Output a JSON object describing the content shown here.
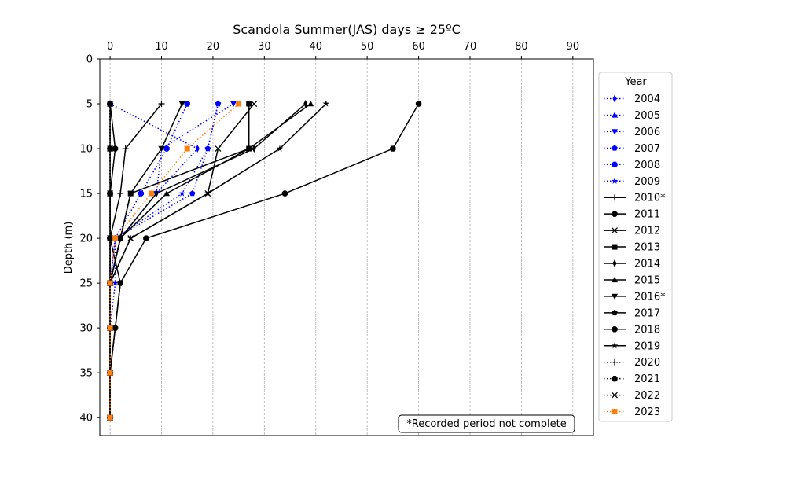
{
  "chart_data": {
    "type": "line",
    "title": "Scandola Summer(JAS) days ≥ 25ºC",
    "xlabel": "",
    "ylabel": "Depth (m)",
    "x_axis_position": "top",
    "y_inverted": true,
    "xlim": [
      -2,
      94
    ],
    "ylim": [
      42,
      0
    ],
    "xticks": [
      0,
      10,
      20,
      30,
      40,
      50,
      60,
      70,
      80,
      90
    ],
    "yticks": [
      0,
      5,
      10,
      15,
      20,
      25,
      30,
      35,
      40
    ],
    "x_grid": true,
    "legend_title": "Year",
    "legend_position": "outside-right",
    "note": "*Recorded period not complete",
    "series": [
      {
        "name": "2004",
        "color": "#0000ff",
        "linestyle": "dotted",
        "marker": "thin_diamond",
        "points": [
          [
            0,
            5
          ],
          [
            17,
            10
          ],
          [
            9,
            15
          ],
          [
            2,
            20
          ],
          [
            0,
            25
          ],
          [
            0,
            30
          ],
          [
            0,
            35
          ],
          [
            0,
            40
          ]
        ]
      },
      {
        "name": "2005",
        "color": "#0000ff",
        "linestyle": "dotted",
        "marker": "triangle_up",
        "points": [
          [
            0,
            5
          ],
          [
            0,
            10
          ],
          [
            0,
            15
          ],
          [
            0,
            20
          ],
          [
            0,
            25
          ],
          [
            0,
            30
          ],
          [
            0,
            35
          ],
          [
            0,
            40
          ]
        ]
      },
      {
        "name": "2006",
        "color": "#0000ff",
        "linestyle": "dotted",
        "marker": "triangle_down",
        "points": [
          [
            24,
            5
          ],
          [
            10,
            10
          ],
          [
            9,
            15
          ],
          [
            2,
            20
          ],
          [
            0,
            25
          ],
          [
            0,
            30
          ],
          [
            0,
            35
          ],
          [
            0,
            40
          ]
        ]
      },
      {
        "name": "2007",
        "color": "#0000ff",
        "linestyle": "dotted",
        "marker": "pentagon",
        "points": [
          [
            21,
            5
          ],
          [
            19,
            10
          ],
          [
            16,
            15
          ],
          [
            1,
            20
          ],
          [
            0,
            25
          ],
          [
            0,
            30
          ],
          [
            0,
            35
          ],
          [
            0,
            40
          ]
        ]
      },
      {
        "name": "2008",
        "color": "#0000ff",
        "linestyle": "dotted",
        "marker": "octagon",
        "points": [
          [
            15,
            5
          ],
          [
            11,
            10
          ],
          [
            6,
            15
          ],
          [
            1,
            20
          ],
          [
            0,
            25
          ],
          [
            0,
            30
          ],
          [
            0,
            35
          ],
          [
            0,
            40
          ]
        ]
      },
      {
        "name": "2009",
        "color": "#0000ff",
        "linestyle": "dotted",
        "marker": "star",
        "points": [
          [
            21,
            5
          ],
          [
            19,
            10
          ],
          [
            14,
            15
          ],
          [
            1,
            20
          ],
          [
            1,
            25
          ],
          [
            0,
            30
          ],
          [
            0,
            35
          ],
          [
            0,
            40
          ]
        ]
      },
      {
        "name": "2010*",
        "color": "#000000",
        "linestyle": "solid",
        "marker": "plus",
        "points": [
          [
            10,
            5
          ],
          [
            3,
            10
          ],
          [
            2,
            15
          ],
          [
            0,
            20
          ],
          [
            0,
            25
          ],
          [
            0,
            30
          ],
          [
            0,
            35
          ],
          [
            0,
            40
          ]
        ]
      },
      {
        "name": "2011",
        "color": "#000000",
        "linestyle": "solid",
        "marker": "octagon",
        "points": [
          [
            0,
            5
          ],
          [
            1,
            10
          ],
          [
            0,
            15
          ],
          [
            0,
            20
          ],
          [
            0,
            25
          ],
          [
            0,
            30
          ],
          [
            0,
            35
          ],
          [
            0,
            40
          ]
        ]
      },
      {
        "name": "2012",
        "color": "#000000",
        "linestyle": "solid",
        "marker": "x",
        "points": [
          [
            28,
            5
          ],
          [
            21,
            10
          ],
          [
            19,
            15
          ],
          [
            4,
            20
          ],
          [
            0,
            25
          ],
          [
            0,
            30
          ],
          [
            0,
            35
          ],
          [
            0,
            40
          ]
        ]
      },
      {
        "name": "2013",
        "color": "#000000",
        "linestyle": "solid",
        "marker": "square",
        "points": [
          [
            27,
            5
          ],
          [
            27,
            10
          ],
          [
            4,
            15
          ],
          [
            2,
            20
          ],
          [
            0,
            25
          ],
          [
            0,
            30
          ],
          [
            0,
            35
          ],
          [
            0,
            40
          ]
        ]
      },
      {
        "name": "2014",
        "color": "#000000",
        "linestyle": "solid",
        "marker": "thin_diamond",
        "points": [
          [
            38,
            5
          ],
          [
            28,
            10
          ],
          [
            9,
            15
          ],
          [
            2,
            20
          ],
          [
            0,
            25
          ],
          [
            0,
            30
          ],
          [
            0,
            35
          ],
          [
            0,
            40
          ]
        ]
      },
      {
        "name": "2015",
        "color": "#000000",
        "linestyle": "solid",
        "marker": "triangle_up",
        "points": [
          [
            39,
            5
          ],
          [
            27,
            10
          ],
          [
            11,
            15
          ],
          [
            2,
            20
          ],
          [
            0,
            25
          ],
          [
            0,
            30
          ],
          [
            0,
            35
          ],
          [
            0,
            40
          ]
        ]
      },
      {
        "name": "2016*",
        "color": "#000000",
        "linestyle": "solid",
        "marker": "triangle_down",
        "points": [
          [
            14,
            5
          ],
          [
            10,
            10
          ],
          [
            4,
            15
          ],
          [
            2,
            20
          ],
          [
            0,
            25
          ],
          [
            0,
            30
          ],
          [
            0,
            35
          ],
          [
            0,
            40
          ]
        ]
      },
      {
        "name": "2017",
        "color": "#000000",
        "linestyle": "solid",
        "marker": "pentagon",
        "points": [
          [
            0,
            5
          ],
          [
            0,
            10
          ],
          [
            0,
            15
          ],
          [
            0,
            20
          ],
          [
            2,
            25
          ],
          [
            1,
            30
          ],
          [
            0,
            35
          ],
          [
            0,
            40
          ]
        ]
      },
      {
        "name": "2018",
        "color": "#000000",
        "linestyle": "solid",
        "marker": "octagon",
        "points": [
          [
            60,
            5
          ],
          [
            55,
            10
          ],
          [
            34,
            15
          ],
          [
            7,
            20
          ],
          [
            2,
            25
          ],
          [
            1,
            30
          ],
          [
            0,
            35
          ],
          [
            0,
            40
          ]
        ]
      },
      {
        "name": "2019",
        "color": "#000000",
        "linestyle": "solid",
        "marker": "star",
        "points": [
          [
            42,
            5
          ],
          [
            33,
            10
          ],
          [
            19,
            15
          ],
          [
            4,
            20
          ],
          [
            0,
            25
          ],
          [
            0,
            30
          ],
          [
            0,
            35
          ],
          [
            0,
            40
          ]
        ]
      },
      {
        "name": "2020",
        "color": "#000000",
        "linestyle": "dotted",
        "marker": "plus",
        "points": [
          [
            0,
            5
          ],
          [
            0,
            10
          ],
          [
            0,
            15
          ],
          [
            0,
            20
          ],
          [
            0,
            25
          ],
          [
            0,
            30
          ],
          [
            0,
            35
          ],
          [
            0,
            40
          ]
        ]
      },
      {
        "name": "2021",
        "color": "#000000",
        "linestyle": "dotted",
        "marker": "octagon",
        "points": [
          [
            0,
            5
          ],
          [
            0,
            10
          ],
          [
            0,
            15
          ],
          [
            0,
            20
          ],
          [
            0,
            25
          ],
          [
            0,
            30
          ],
          [
            0,
            35
          ],
          [
            0,
            40
          ]
        ]
      },
      {
        "name": "2022",
        "color": "#000000",
        "linestyle": "dotted",
        "marker": "x",
        "points": [
          [
            0,
            5
          ],
          [
            0,
            10
          ],
          [
            0,
            15
          ],
          [
            0,
            20
          ],
          [
            0,
            25
          ],
          [
            0,
            30
          ],
          [
            0,
            35
          ],
          [
            0,
            40
          ]
        ]
      },
      {
        "name": "2023",
        "color": "#ff7f0e",
        "linestyle": "dotted",
        "marker": "square",
        "points": [
          [
            25,
            5
          ],
          [
            15,
            10
          ],
          [
            8,
            15
          ],
          [
            1,
            20
          ],
          [
            0,
            25
          ],
          [
            0,
            30
          ],
          [
            0,
            35
          ],
          [
            0,
            40
          ]
        ]
      }
    ]
  }
}
